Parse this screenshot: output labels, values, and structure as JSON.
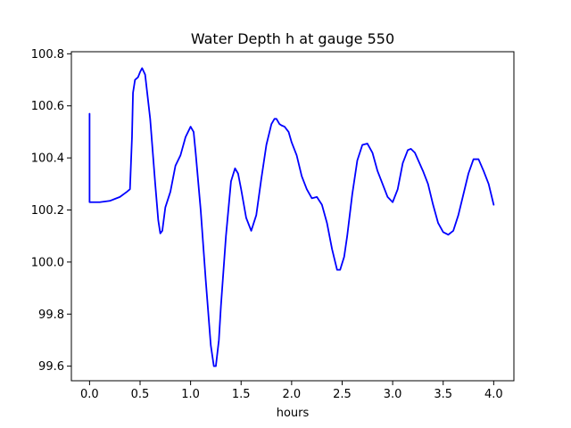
{
  "chart_data": {
    "type": "line",
    "title": "Water Depth h at gauge 550",
    "xlabel": "hours",
    "ylabel": "",
    "xlim": [
      -0.18,
      4.2
    ],
    "ylim": [
      99.544,
      100.808
    ],
    "xticks": [
      0.0,
      0.5,
      1.0,
      1.5,
      2.0,
      2.5,
      3.0,
      3.5,
      4.0
    ],
    "xtick_labels": [
      "0.0",
      "0.5",
      "1.0",
      "1.5",
      "2.0",
      "2.5",
      "3.0",
      "3.5",
      "4.0"
    ],
    "yticks": [
      99.6,
      99.8,
      100.0,
      100.2,
      100.4,
      100.6,
      100.8
    ],
    "ytick_labels": [
      "99.6",
      "99.8",
      "100.0",
      "100.2",
      "100.4",
      "100.6",
      "100.8"
    ],
    "grid": false,
    "series": [
      {
        "color": "#0000ff",
        "x": [
          0.0,
          0.0,
          0.005,
          0.1,
          0.2,
          0.3,
          0.37,
          0.4,
          0.42,
          0.43,
          0.45,
          0.48,
          0.5,
          0.52,
          0.55,
          0.6,
          0.65,
          0.68,
          0.7,
          0.72,
          0.75,
          0.8,
          0.85,
          0.9,
          0.95,
          1.0,
          1.03,
          1.05,
          1.1,
          1.15,
          1.2,
          1.23,
          1.25,
          1.28,
          1.3,
          1.35,
          1.4,
          1.44,
          1.47,
          1.5,
          1.55,
          1.6,
          1.65,
          1.7,
          1.75,
          1.8,
          1.83,
          1.85,
          1.88,
          1.9,
          1.93,
          1.97,
          2.0,
          2.05,
          2.1,
          2.15,
          2.2,
          2.25,
          2.3,
          2.35,
          2.4,
          2.45,
          2.48,
          2.52,
          2.55,
          2.6,
          2.65,
          2.7,
          2.75,
          2.8,
          2.85,
          2.9,
          2.95,
          3.0,
          3.05,
          3.1,
          3.15,
          3.18,
          3.22,
          3.3,
          3.35,
          3.4,
          3.45,
          3.5,
          3.55,
          3.6,
          3.65,
          3.7,
          3.75,
          3.8,
          3.85,
          3.9,
          3.95,
          4.0
        ],
        "y": [
          100.57,
          100.23,
          100.23,
          100.23,
          100.235,
          100.25,
          100.27,
          100.28,
          100.48,
          100.65,
          100.7,
          100.71,
          100.73,
          100.745,
          100.72,
          100.55,
          100.3,
          100.16,
          100.11,
          100.12,
          100.21,
          100.27,
          100.37,
          100.41,
          100.48,
          100.52,
          100.5,
          100.42,
          100.2,
          99.93,
          99.68,
          99.6,
          99.6,
          99.7,
          99.83,
          100.1,
          100.31,
          100.36,
          100.34,
          100.28,
          100.17,
          100.12,
          100.18,
          100.32,
          100.45,
          100.53,
          100.55,
          100.55,
          100.53,
          100.525,
          100.52,
          100.5,
          100.46,
          100.41,
          100.33,
          100.28,
          100.245,
          100.25,
          100.22,
          100.15,
          100.05,
          99.97,
          99.97,
          100.02,
          100.1,
          100.26,
          100.39,
          100.45,
          100.455,
          100.42,
          100.35,
          100.3,
          100.25,
          100.23,
          100.28,
          100.38,
          100.43,
          100.435,
          100.42,
          100.35,
          100.3,
          100.22,
          100.15,
          100.115,
          100.105,
          100.12,
          100.18,
          100.26,
          100.34,
          100.395,
          100.395,
          100.35,
          100.3,
          100.22
        ]
      }
    ]
  }
}
